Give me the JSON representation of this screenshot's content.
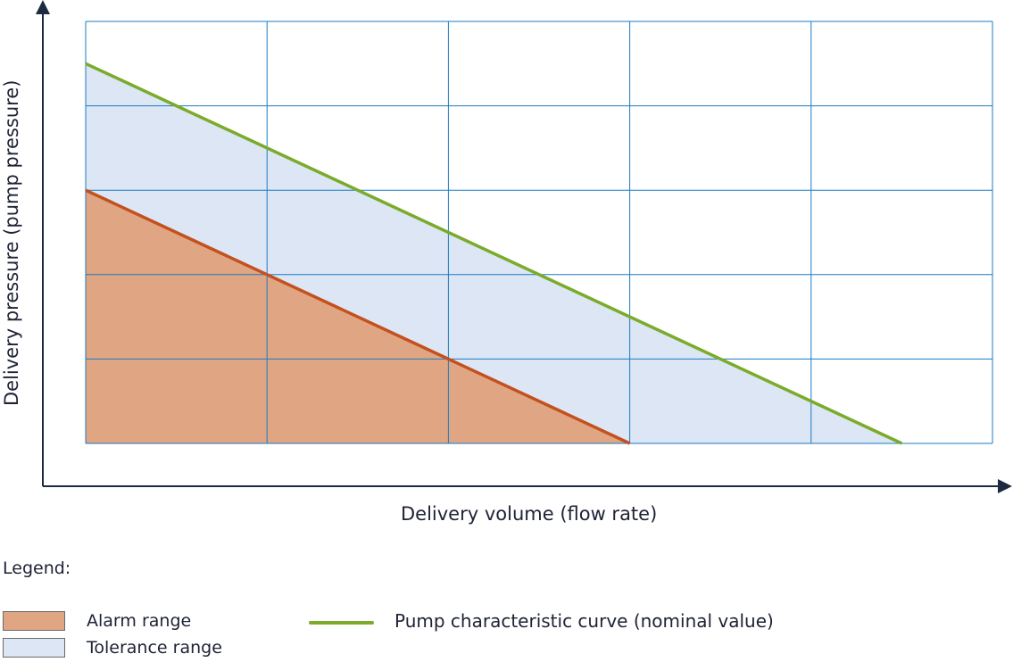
{
  "chart_data": {
    "type": "area",
    "xlabel": "Delivery volume (flow rate)",
    "ylabel": "Delivery pressure (pump pressure)",
    "xlim": [
      0,
      5
    ],
    "ylim": [
      0,
      5
    ],
    "grid": true,
    "ticks_labeled": false,
    "series": [
      {
        "name": "Pump characteristic curve (nominal value)",
        "kind": "line",
        "x": [
          0,
          4.5
        ],
        "y": [
          4.5,
          0
        ],
        "color": "#7aab2a"
      },
      {
        "name": "Alarm range",
        "kind": "area",
        "x": [
          0,
          3
        ],
        "y": [
          3,
          0
        ],
        "color": "#e0a582",
        "edge_color": "#c4501e"
      },
      {
        "name": "Tolerance range",
        "kind": "area",
        "x": [
          0,
          4.5
        ],
        "y": [
          4.5,
          0
        ],
        "color": "#dce6f4"
      }
    ],
    "legend": {
      "title": "Legend:",
      "position": "bottom-left",
      "items": [
        "Alarm range",
        "Tolerance range",
        "Pump characteristic curve (nominal value)"
      ]
    },
    "colors": {
      "grid": "#1a7bc4",
      "axis": "#1e2a40"
    }
  }
}
